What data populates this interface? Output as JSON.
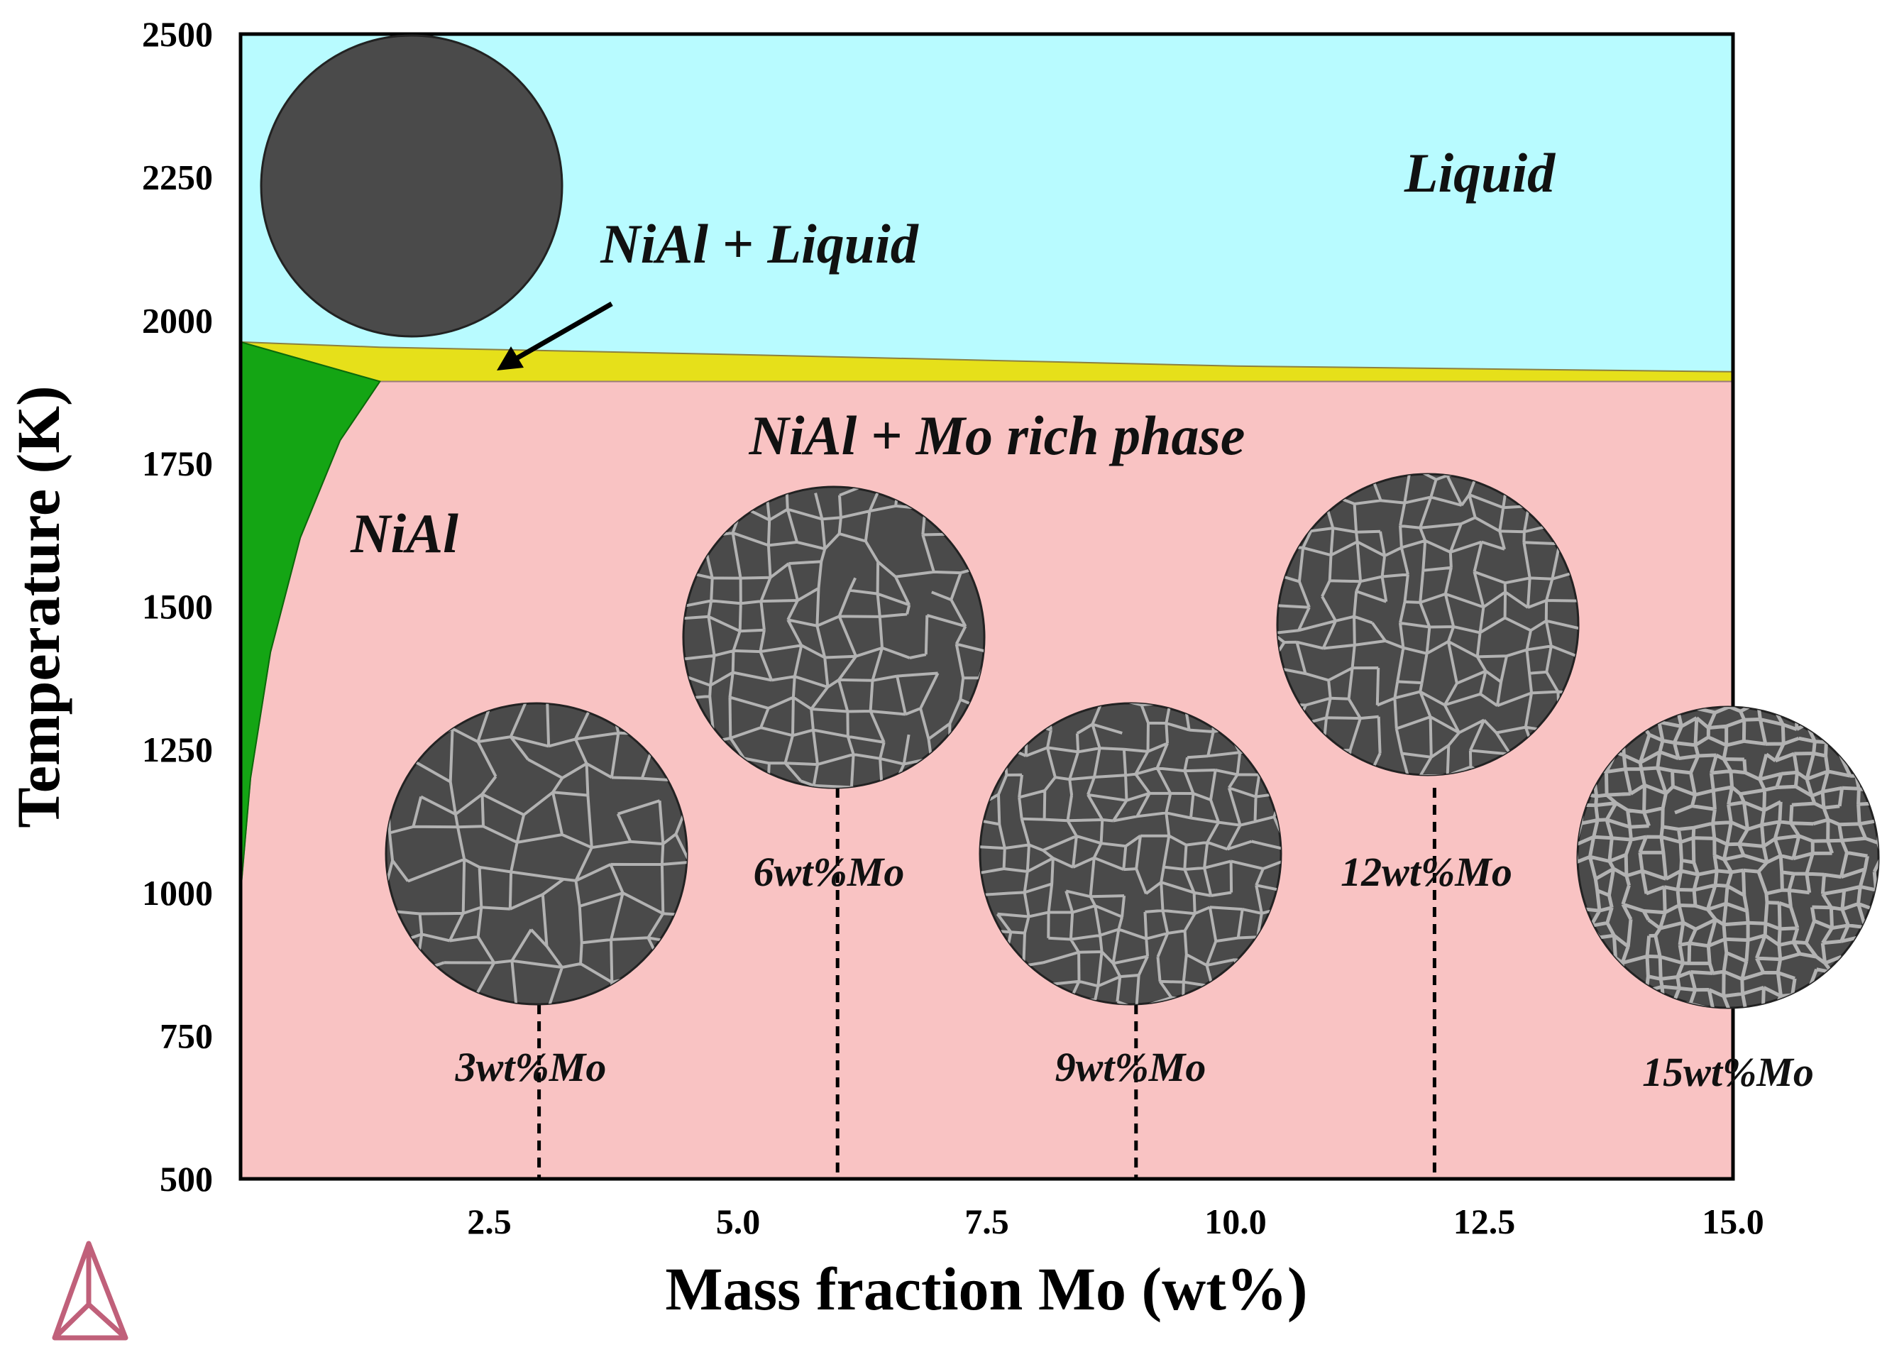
{
  "chart_data": {
    "type": "phase-diagram",
    "xlabel": "Mass fraction Mo (wt%)",
    "ylabel": "Temperature (K)",
    "xlim": [
      0,
      15.0
    ],
    "ylim": [
      500,
      2500
    ],
    "x_ticks": [
      "2.5",
      "5.0",
      "7.5",
      "10.0",
      "12.5",
      "15.0"
    ],
    "x_tick_values": [
      2.5,
      5.0,
      7.5,
      10.0,
      12.5,
      15.0
    ],
    "y_ticks": [
      "2500",
      "2250",
      "2000",
      "1750",
      "1500",
      "1250",
      "1000",
      "750",
      "500"
    ],
    "y_tick_values": [
      2500,
      2250,
      2000,
      1750,
      1500,
      1250,
      1000,
      750,
      500
    ],
    "regions": [
      {
        "label": "Liquid",
        "color": "#b8fbff"
      },
      {
        "label": "NiAl + Liquid",
        "color": "#e6e01a"
      },
      {
        "label": "NiAl + Mo rich phase",
        "color": "#f9c3c3"
      },
      {
        "label": "NiAl",
        "color": "#14a514"
      }
    ],
    "boundaries": {
      "liquidus": [
        [
          0,
          1962
        ],
        [
          1.4,
          1953
        ],
        [
          5,
          1940
        ],
        [
          10,
          1920
        ],
        [
          15,
          1910
        ]
      ],
      "solidus": [
        [
          0,
          1962
        ],
        [
          1.4,
          1893
        ],
        [
          15,
          1893
        ]
      ],
      "nial_solvus": [
        [
          1.4,
          1893
        ],
        [
          1.0,
          1790
        ],
        [
          0.6,
          1620
        ],
        [
          0.3,
          1420
        ],
        [
          0.1,
          1200
        ],
        [
          0,
          1000
        ]
      ]
    },
    "compositions": [
      {
        "label": "3wt%Mo",
        "x": 3,
        "micrograph_T": 1050
      },
      {
        "label": "6wt%Mo",
        "x": 6,
        "micrograph_T": 1430
      },
      {
        "label": "9wt%Mo",
        "x": 9,
        "micrograph_T": 1060
      },
      {
        "label": "12wt%Mo",
        "x": 12,
        "micrograph_T": 1430
      },
      {
        "label": "15wt%Mo",
        "x": 15,
        "micrograph_T": 1080
      }
    ],
    "as_cast_micrograph_T": 2200,
    "colors": {
      "axis": "#000000",
      "micrograph": "#4a4a4a",
      "micrograph_network": "#c4c4c4",
      "logo": "#c0607a"
    }
  }
}
